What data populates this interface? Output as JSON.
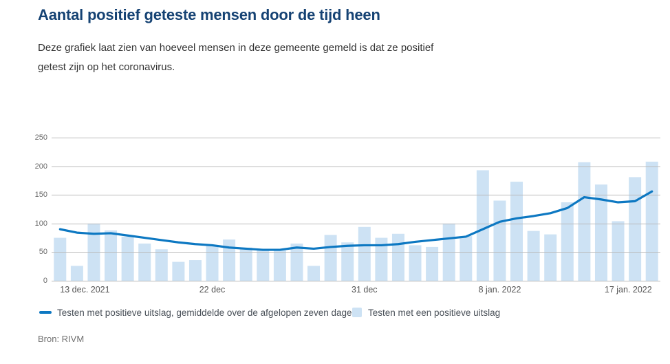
{
  "header": {
    "title": "Aantal positief geteste mensen door de tijd heen",
    "subtitle": "Deze grafiek laat zien van hoeveel mensen in deze gemeente gemeld is dat ze positief getest zijn op het coronavirus."
  },
  "legend": {
    "items": [
      {
        "swatch": "line",
        "label": "Testen met positieve uitslag, gemiddelde over de afgelopen zeven dagen"
      },
      {
        "swatch": "bar",
        "label": "Testen met een positieve uitslag"
      }
    ]
  },
  "source": {
    "label": "Bron: RIVM"
  },
  "colors": {
    "title": "#154273",
    "line": "#0d78c2",
    "bar": "#cde2f4",
    "gridline": "#b9b9b9",
    "axis_text": "#666666"
  },
  "chart_data": {
    "type": "bar",
    "title": "Aantal positief geteste mensen door de tijd heen",
    "n_points": 36,
    "ylim": [
      0,
      250
    ],
    "yticks": [
      0,
      50,
      100,
      150,
      200,
      250
    ],
    "ytick_labels": [
      "0",
      "50",
      "100",
      "150",
      "200",
      "250"
    ],
    "grid": true,
    "legend_position": "bottom",
    "x_ticks": [
      {
        "index": 0,
        "label": "13 dec. 2021",
        "align": "start"
      },
      {
        "index": 9,
        "label": "22 dec",
        "align": "center"
      },
      {
        "index": 18,
        "label": "31 dec",
        "align": "center"
      },
      {
        "index": 26,
        "label": "8 jan. 2022",
        "align": "center"
      },
      {
        "index": 35,
        "label": "17 jan. 2022",
        "align": "end"
      }
    ],
    "series": [
      {
        "name": "Testen met een positieve uitslag",
        "type": "bar",
        "color": "#cde2f4",
        "values": [
          75,
          26,
          100,
          88,
          77,
          65,
          55,
          33,
          36,
          62,
          72,
          58,
          53,
          53,
          65,
          26,
          80,
          67,
          94,
          75,
          82,
          62,
          59,
          100,
          78,
          193,
          140,
          173,
          87,
          81,
          137,
          207,
          168,
          104,
          181,
          208
        ]
      },
      {
        "name": "Testen met positieve uitslag, gemiddelde over de afgelopen zeven dagen",
        "type": "line",
        "color": "#0d78c2",
        "values": [
          90,
          84,
          82,
          83,
          79,
          75,
          71,
          67,
          64,
          62,
          58,
          56,
          54,
          54,
          58,
          56,
          59,
          61,
          62,
          62,
          64,
          68,
          71,
          74,
          77,
          90,
          103,
          109,
          113,
          118,
          127,
          146,
          142,
          137,
          139,
          156
        ]
      }
    ]
  }
}
